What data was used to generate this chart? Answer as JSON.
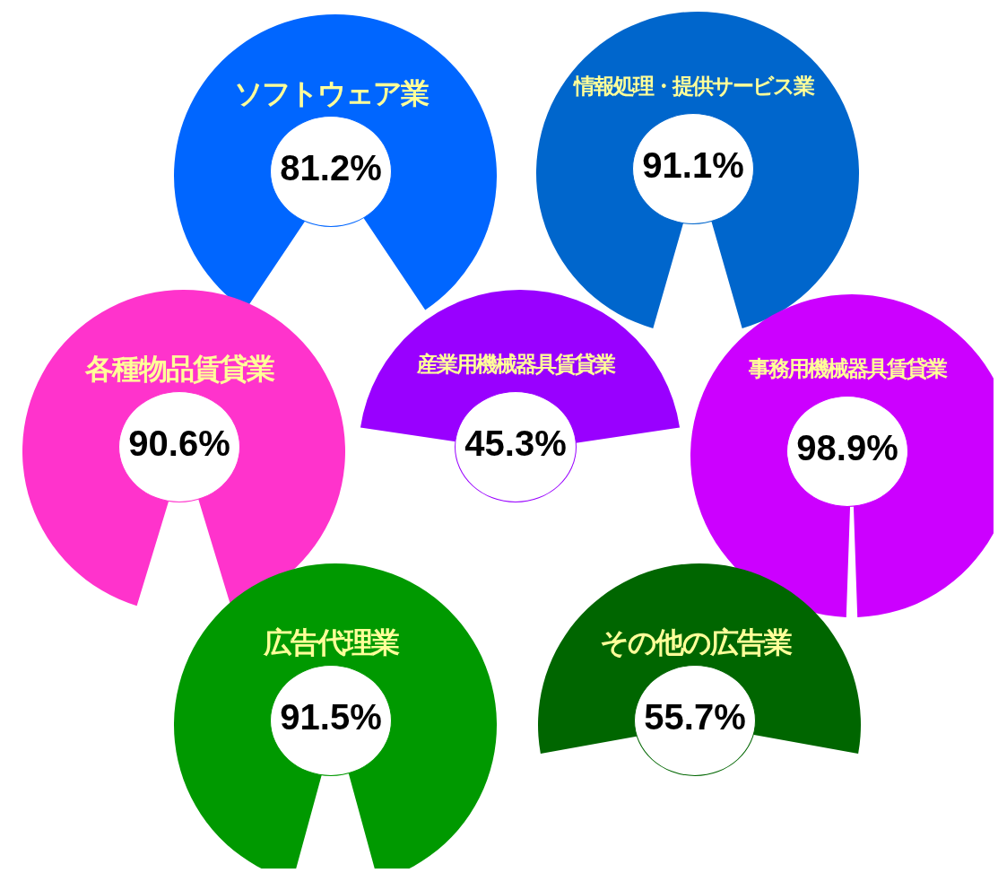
{
  "chart_data": [
    {
      "type": "pie",
      "title": "ソフトウェア業",
      "categories": [
        null
      ],
      "values": [
        81.2
      ],
      "colors": [
        "#0066ff"
      ],
      "value_labels": [
        "81.2%"
      ]
    },
    {
      "type": "pie",
      "title": "情報処理・提供サービス業",
      "categories": [
        null
      ],
      "values": [
        91.1
      ],
      "colors": [
        "#0066cc"
      ],
      "value_labels": [
        "91.1%"
      ]
    },
    {
      "type": "pie",
      "title": "各種物品賃貸業",
      "categories": [
        null
      ],
      "values": [
        90.6
      ],
      "colors": [
        "#ff33cc"
      ],
      "value_labels": [
        "90.6%"
      ]
    },
    {
      "type": "pie",
      "title": "産業用機械器具賃貸業",
      "categories": [
        null
      ],
      "values": [
        45.3
      ],
      "colors": [
        "#9900ff"
      ],
      "value_labels": [
        "45.3%"
      ]
    },
    {
      "type": "pie",
      "title": "事務用機械器具賃貸業",
      "categories": [
        null
      ],
      "values": [
        98.9
      ],
      "colors": [
        "#cc00ff"
      ],
      "value_labels": [
        "98.9%"
      ]
    },
    {
      "type": "pie",
      "title": "広告代理業",
      "categories": [
        null
      ],
      "values": [
        91.5
      ],
      "colors": [
        "#009900"
      ],
      "value_labels": [
        "91.5%"
      ]
    },
    {
      "type": "pie",
      "title": "その他の広告業",
      "categories": [
        null
      ],
      "values": [
        55.7
      ],
      "colors": [
        "#006600"
      ],
      "value_labels": [
        "55.7%"
      ]
    }
  ]
}
